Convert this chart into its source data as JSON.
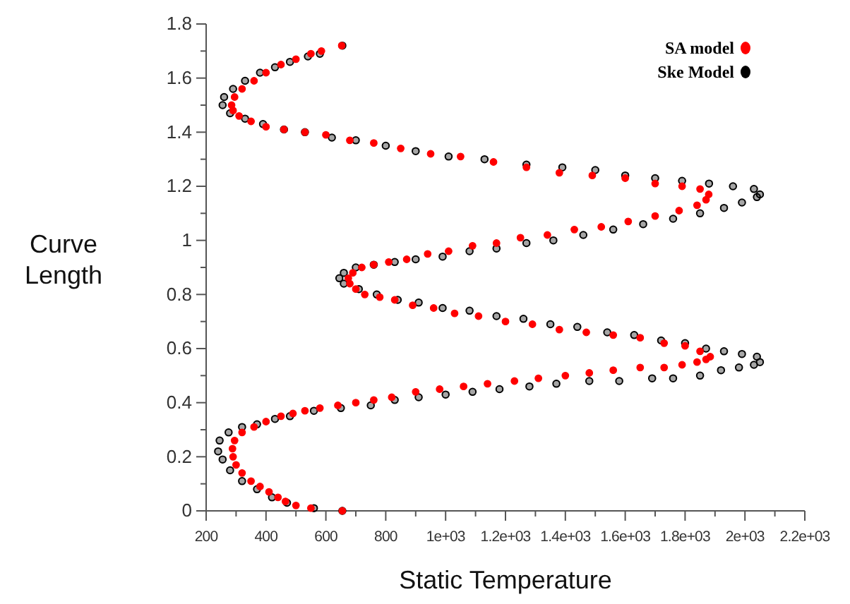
{
  "chart_data": {
    "type": "scatter",
    "xlabel": "Static Temperature",
    "ylabel": "Curve Length",
    "xlim": [
      200,
      2200
    ],
    "ylim": [
      0,
      1.8
    ],
    "xticks": [
      200,
      {
        "value": 300,
        "label": null
      },
      400,
      {
        "value": 500,
        "label": null
      },
      600,
      {
        "value": 700,
        "label": null
      },
      800,
      {
        "value": 900,
        "label": null
      },
      {
        "value": 1000,
        "label": "1e+03"
      },
      {
        "value": 1100,
        "label": null
      },
      {
        "value": 1200,
        "label": "1.2e+03"
      },
      {
        "value": 1300,
        "label": null
      },
      {
        "value": 1400,
        "label": "1.4e+03"
      },
      {
        "value": 1500,
        "label": null
      },
      {
        "value": 1600,
        "label": "1.6e+03"
      },
      {
        "value": 1700,
        "label": null
      },
      {
        "value": 1800,
        "label": "1.8e+03"
      },
      {
        "value": 1900,
        "label": null
      },
      {
        "value": 2000,
        "label": "2e+03"
      },
      {
        "value": 2100,
        "label": null
      },
      {
        "value": 2200,
        "label": "2.2e+03"
      }
    ],
    "yticks": [
      0,
      {
        "value": 0.1,
        "label": null
      },
      0.2,
      {
        "value": 0.3,
        "label": null
      },
      0.4,
      {
        "value": 0.5,
        "label": null
      },
      0.6,
      {
        "value": 0.7,
        "label": null
      },
      0.8,
      {
        "value": 0.9,
        "label": null
      },
      1,
      {
        "value": 1.1,
        "label": null
      },
      1.2,
      {
        "value": 1.3,
        "label": null
      },
      1.4,
      {
        "value": 1.5,
        "label": null
      },
      1.6,
      {
        "value": 1.7,
        "label": null
      },
      1.8
    ],
    "legend": "top right",
    "marker": "circle",
    "series": [
      {
        "name": "SA model",
        "color": "#ff0000",
        "x": [
          655,
          550,
          500,
          465,
          440,
          410,
          380,
          350,
          320,
          300,
          290,
          288,
          295,
          320,
          360,
          400,
          450,
          490,
          530,
          580,
          640,
          700,
          760,
          820,
          900,
          980,
          1060,
          1140,
          1230,
          1310,
          1400,
          1480,
          1560,
          1650,
          1730,
          1790,
          1840,
          1870,
          1884,
          1850,
          1800,
          1730,
          1650,
          1560,
          1470,
          1380,
          1290,
          1200,
          1110,
          1030,
          960,
          890,
          830,
          780,
          730,
          700,
          680,
          675,
          690,
          720,
          760,
          810,
          870,
          940,
          1010,
          1090,
          1170,
          1250,
          1340,
          1430,
          1520,
          1610,
          1700,
          1780,
          1840,
          1870,
          1879,
          1850,
          1790,
          1700,
          1600,
          1490,
          1380,
          1270,
          1160,
          1050,
          950,
          850,
          760,
          680,
          600,
          530,
          460,
          400,
          350,
          310,
          290,
          285,
          295,
          320,
          360,
          400,
          450,
          500,
          550,
          585,
          653
        ],
        "values": [
          0,
          0.01,
          0.02,
          0.035,
          0.05,
          0.07,
          0.09,
          0.11,
          0.14,
          0.17,
          0.2,
          0.23,
          0.26,
          0.29,
          0.31,
          0.33,
          0.35,
          0.36,
          0.37,
          0.38,
          0.39,
          0.4,
          0.41,
          0.42,
          0.44,
          0.45,
          0.46,
          0.47,
          0.48,
          0.49,
          0.5,
          0.51,
          0.52,
          0.53,
          0.53,
          0.54,
          0.55,
          0.56,
          0.57,
          0.59,
          0.61,
          0.62,
          0.64,
          0.65,
          0.66,
          0.67,
          0.69,
          0.7,
          0.72,
          0.73,
          0.75,
          0.76,
          0.78,
          0.79,
          0.8,
          0.82,
          0.84,
          0.86,
          0.88,
          0.9,
          0.91,
          0.92,
          0.93,
          0.95,
          0.96,
          0.98,
          0.99,
          1.01,
          1.02,
          1.04,
          1.05,
          1.07,
          1.09,
          1.11,
          1.13,
          1.15,
          1.17,
          1.19,
          1.2,
          1.21,
          1.23,
          1.24,
          1.25,
          1.27,
          1.29,
          1.31,
          1.32,
          1.34,
          1.36,
          1.37,
          1.39,
          1.4,
          1.41,
          1.42,
          1.44,
          1.46,
          1.48,
          1.5,
          1.53,
          1.56,
          1.59,
          1.62,
          1.65,
          1.67,
          1.69,
          1.7,
          1.72
        ]
      },
      {
        "name": "Ske Model",
        "color": "#000000",
        "x": [
          655,
          560,
          470,
          420,
          370,
          320,
          280,
          255,
          240,
          245,
          275,
          320,
          370,
          430,
          480,
          560,
          650,
          750,
          830,
          910,
          1000,
          1090,
          1180,
          1280,
          1370,
          1480,
          1580,
          1690,
          1760,
          1850,
          1920,
          1980,
          2030,
          2050,
          2040,
          1990,
          1930,
          1870,
          1800,
          1720,
          1630,
          1540,
          1440,
          1350,
          1260,
          1170,
          1080,
          990,
          910,
          840,
          770,
          710,
          660,
          645,
          660,
          700,
          760,
          830,
          900,
          990,
          1080,
          1170,
          1270,
          1360,
          1460,
          1560,
          1660,
          1760,
          1850,
          1930,
          1990,
          2040,
          2050,
          2030,
          1960,
          1880,
          1790,
          1700,
          1600,
          1500,
          1390,
          1270,
          1130,
          1010,
          900,
          800,
          700,
          620,
          530,
          460,
          390,
          330,
          280,
          255,
          260,
          290,
          330,
          380,
          430,
          480,
          540,
          580,
          655
        ],
        "values": [
          0,
          0.01,
          0.03,
          0.05,
          0.08,
          0.11,
          0.15,
          0.19,
          0.22,
          0.26,
          0.29,
          0.31,
          0.32,
          0.34,
          0.35,
          0.37,
          0.38,
          0.39,
          0.41,
          0.42,
          0.43,
          0.44,
          0.45,
          0.46,
          0.47,
          0.48,
          0.48,
          0.49,
          0.49,
          0.5,
          0.52,
          0.53,
          0.54,
          0.55,
          0.57,
          0.58,
          0.59,
          0.6,
          0.62,
          0.63,
          0.65,
          0.66,
          0.68,
          0.69,
          0.71,
          0.72,
          0.74,
          0.75,
          0.77,
          0.78,
          0.8,
          0.82,
          0.84,
          0.86,
          0.88,
          0.9,
          0.91,
          0.92,
          0.93,
          0.94,
          0.96,
          0.97,
          0.99,
          1,
          1.02,
          1.04,
          1.06,
          1.08,
          1.1,
          1.12,
          1.14,
          1.16,
          1.17,
          1.19,
          1.2,
          1.21,
          1.22,
          1.23,
          1.24,
          1.26,
          1.27,
          1.28,
          1.3,
          1.31,
          1.33,
          1.35,
          1.37,
          1.38,
          1.4,
          1.41,
          1.43,
          1.45,
          1.47,
          1.5,
          1.53,
          1.56,
          1.59,
          1.62,
          1.64,
          1.66,
          1.68,
          1.69,
          1.72
        ]
      }
    ]
  }
}
